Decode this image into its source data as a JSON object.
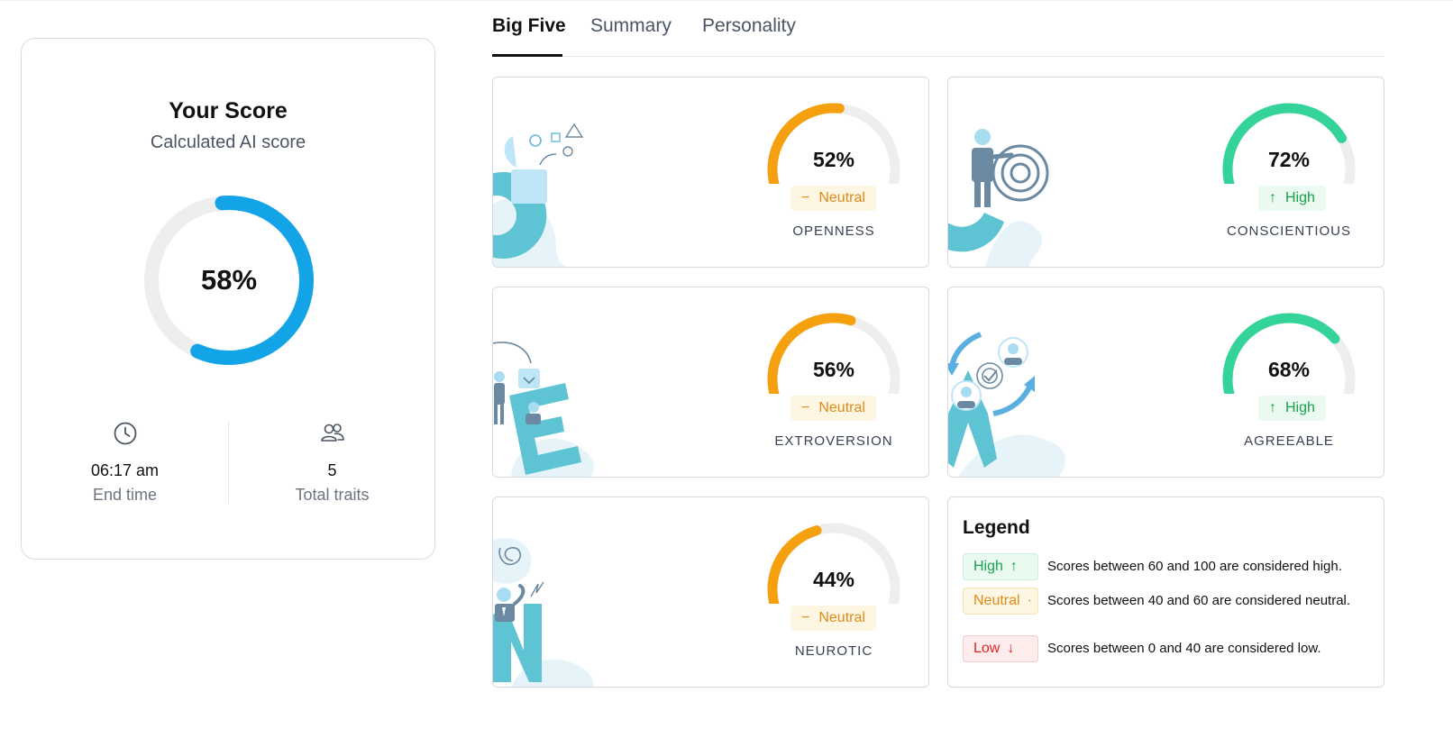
{
  "tabs": [
    {
      "label": "Big Five",
      "active": true
    },
    {
      "label": "Summary",
      "active": false
    },
    {
      "label": "Personality",
      "active": false
    }
  ],
  "score_card": {
    "title": "Your Score",
    "subtitle": "Calculated AI score",
    "value_label": "58%",
    "value": 58,
    "ring_color": "#13a4e8",
    "stats": [
      {
        "icon": "clock-icon",
        "value": "06:17 am",
        "label": "End time"
      },
      {
        "icon": "users-icon",
        "value": "5",
        "label": "Total traits"
      }
    ]
  },
  "traits": [
    {
      "name": "OPENNESS",
      "percent_label": "52%",
      "percent": 52,
      "badge": "Neutral",
      "level": "neutral",
      "color": "#f5a00f",
      "letter": "O"
    },
    {
      "name": "CONSCIENTIOUS",
      "percent_label": "72%",
      "percent": 72,
      "badge": "High",
      "level": "high",
      "color": "#34d399",
      "letter": "C"
    },
    {
      "name": "EXTROVERSION",
      "percent_label": "56%",
      "percent": 56,
      "badge": "Neutral",
      "level": "neutral",
      "color": "#f5a00f",
      "letter": "E"
    },
    {
      "name": "AGREEABLE",
      "percent_label": "68%",
      "percent": 68,
      "badge": "High",
      "level": "high",
      "color": "#34d399",
      "letter": "A"
    },
    {
      "name": "NEUROTIC",
      "percent_label": "44%",
      "percent": 44,
      "badge": "Neutral",
      "level": "neutral",
      "color": "#f5a00f",
      "letter": "N"
    }
  ],
  "legend": {
    "title": "Legend",
    "items": [
      {
        "badge": "High",
        "level": "high",
        "text": "Scores between 60 and 100 are considered high."
      },
      {
        "badge": "Neutral",
        "level": "neutral",
        "text": "Scores between 40 and 60 are considered neutral."
      },
      {
        "badge": "Low",
        "level": "low",
        "text": "Scores between 0 and 40 are considered low."
      }
    ]
  },
  "colors": {
    "track": "#eeeeee",
    "neutral": "#f5a00f",
    "high": "#34d399",
    "low": "#dc2626",
    "illustration_teal": "#5ec3d2",
    "illustration_light": "#e6f4f9",
    "illustration_slate": "#6b8aa1"
  }
}
